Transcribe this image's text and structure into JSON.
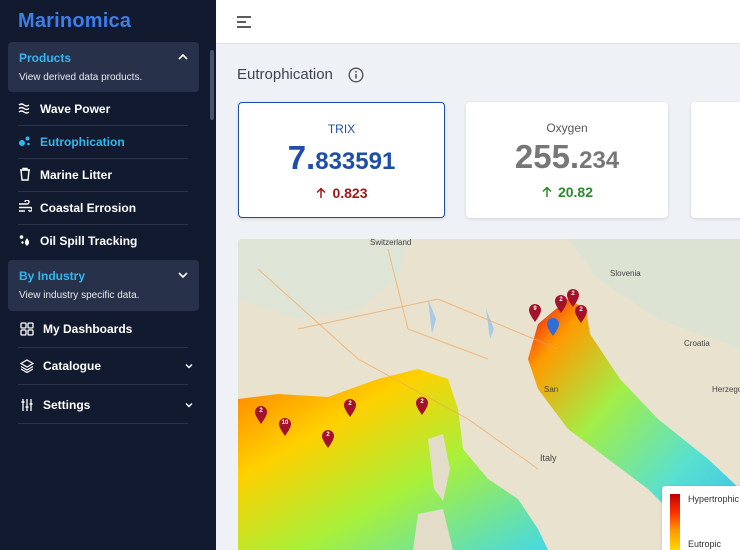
{
  "app": {
    "logo": "Marinomica"
  },
  "sidebar": {
    "products": {
      "title": "Products",
      "description": "View derived data products."
    },
    "product_items": [
      {
        "label": "Wave Power",
        "icon": "waves-icon"
      },
      {
        "label": "Eutrophication",
        "icon": "bubbles-icon"
      },
      {
        "label": "Marine Litter",
        "icon": "trash-icon"
      },
      {
        "label": "Coastal Errosion",
        "icon": "wind-icon"
      },
      {
        "label": "Oil Spill Tracking",
        "icon": "droplets-icon"
      }
    ],
    "industry": {
      "title": "By Industry",
      "description": "View industry specific data."
    },
    "menu_items": [
      {
        "label": "My Dashboards",
        "icon": "grid-icon"
      },
      {
        "label": "Catalogue",
        "icon": "layers-icon"
      },
      {
        "label": "Settings",
        "icon": "sliders-icon"
      }
    ]
  },
  "header": {
    "menu_icon": "menu-icon"
  },
  "page": {
    "title": "Eutrophication"
  },
  "cards": [
    {
      "title": "TRIX",
      "value_int": "7.",
      "value_dec": "833591",
      "delta": "0.823",
      "trend": "up",
      "delta_color": "#a01818"
    },
    {
      "title": "Oxygen",
      "value_int": "255.",
      "value_dec": "234",
      "delta": "20.82",
      "trend": "up",
      "delta_color": "#2b8a2b"
    }
  ],
  "map": {
    "labels": {
      "switzerland": "Switzerland",
      "slovenia": "Slovenia",
      "croatia": "Croatia",
      "italy": "Italy",
      "san": "San",
      "herzego": "Herzego"
    },
    "legend": {
      "high": "Hypertrophic",
      "low": "Eutropic"
    },
    "markers": [
      "9",
      "2",
      "2",
      "2",
      "2",
      "10",
      "2",
      "2",
      "2"
    ]
  }
}
